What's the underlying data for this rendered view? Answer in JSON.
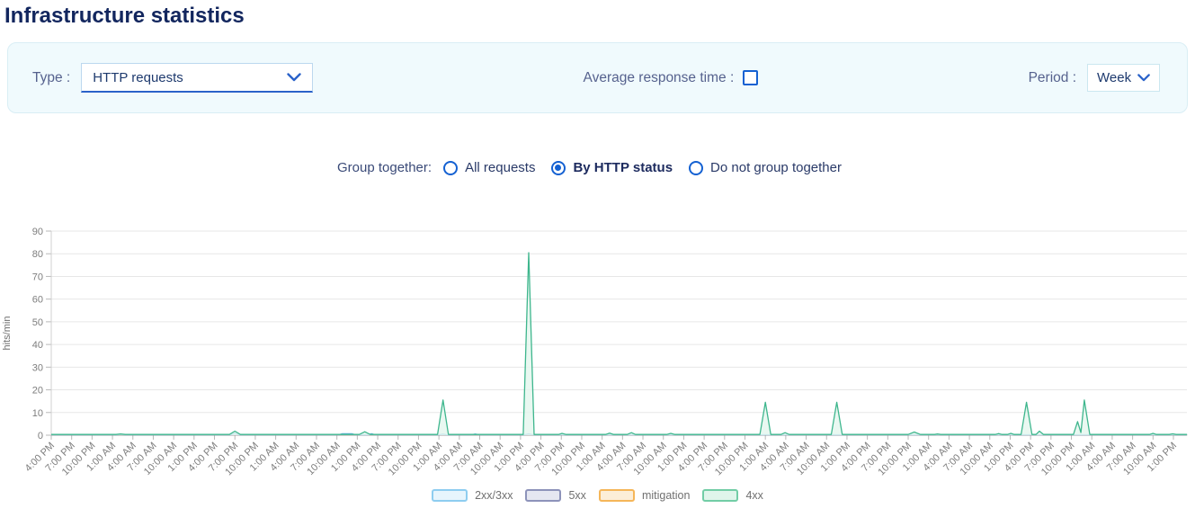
{
  "page": {
    "title": "Infrastructure statistics"
  },
  "filters": {
    "type_label": "Type :",
    "type_value": "HTTP requests",
    "avg_response_label": "Average response time :",
    "avg_response_checked": false,
    "period_label": "Period :",
    "period_value": "Week"
  },
  "grouping": {
    "label": "Group together:",
    "options": [
      {
        "label": "All requests",
        "selected": false
      },
      {
        "label": "By HTTP status",
        "selected": true
      },
      {
        "label": "Do not group together",
        "selected": false
      }
    ]
  },
  "colors": {
    "accent_blue": "#1461d2",
    "panel_bg": "#f0fafd",
    "title_navy": "#12265e",
    "grid": "#e7e7e7",
    "axis": "#b0b0b0",
    "tick_text": "#7d7d7d"
  },
  "chart_data": {
    "type": "area",
    "title": "",
    "xlabel": "",
    "ylabel": "hits/min",
    "ylim": [
      0,
      90
    ],
    "y_ticks": [
      0,
      10,
      20,
      30,
      40,
      50,
      60,
      70,
      80,
      90
    ],
    "grid": true,
    "legend_position": "bottom",
    "x_unit_hours": 3,
    "x_hours_max": 167,
    "x_tick_labels": [
      "4:00 PM",
      "7:00 PM",
      "10:00 PM",
      "1:00 AM",
      "4:00 AM",
      "7:00 AM",
      "10:00 AM",
      "1:00 PM",
      "4:00 PM",
      "7:00 PM",
      "10:00 PM",
      "1:00 AM",
      "4:00 AM",
      "7:00 AM",
      "10:00 AM",
      "1:00 PM",
      "4:00 PM",
      "7:00 PM",
      "10:00 PM",
      "1:00 AM",
      "4:00 AM",
      "7:00 AM",
      "10:00 AM",
      "1:00 PM",
      "4:00 PM",
      "7:00 PM",
      "10:00 PM",
      "1:00 AM",
      "4:00 AM",
      "7:00 AM",
      "10:00 AM",
      "1:00 PM",
      "4:00 PM",
      "7:00 PM",
      "10:00 PM",
      "1:00 AM",
      "4:00 AM",
      "7:00 AM",
      "10:00 AM",
      "1:00 PM",
      "4:00 PM",
      "7:00 PM",
      "10:00 PM",
      "1:00 AM",
      "4:00 AM",
      "7:00 AM",
      "10:00 AM",
      "1:00 PM",
      "4:00 PM",
      "7:00 PM",
      "10:00 PM",
      "1:00 AM",
      "4:00 AM",
      "7:00 AM",
      "10:00 AM",
      "1:00 PM"
    ],
    "series": [
      {
        "name": "2xx/3xx",
        "stroke": "#61afe3",
        "fill": "#e9f5fd",
        "legend_border": "#8ecdf0",
        "legend_fill": "#e7f5fd",
        "points": [
          [
            0,
            0.2
          ],
          [
            9.8,
            0.2
          ],
          [
            10.2,
            0.45
          ],
          [
            10.7,
            0.2
          ],
          [
            26.5,
            0.2
          ],
          [
            27,
            0.9
          ],
          [
            27.5,
            0.2
          ],
          [
            42.3,
            0.2
          ],
          [
            42.8,
            0.65
          ],
          [
            44.2,
            0.65
          ],
          [
            44.7,
            0.2
          ],
          [
            46.6,
            0.2
          ],
          [
            47.1,
            0.65
          ],
          [
            47.6,
            0.2
          ],
          [
            57.1,
            0.2
          ],
          [
            57.6,
            0.5
          ],
          [
            58.1,
            0.2
          ],
          [
            61.8,
            0.2
          ],
          [
            62.3,
            0.5
          ],
          [
            62.9,
            0.2
          ],
          [
            69.6,
            0.2
          ],
          [
            70.2,
            0.6
          ],
          [
            70.8,
            0.2
          ],
          [
            167,
            0.2
          ]
        ]
      },
      {
        "name": "5xx",
        "stroke": "#8d93ba",
        "fill": "#e5e7f1",
        "legend_border": "#8d93ba",
        "legend_fill": "#e5e7f1",
        "points": [
          [
            0,
            0.12
          ],
          [
            167,
            0.12
          ]
        ]
      },
      {
        "name": "mitigation",
        "stroke": "#f2a93b",
        "fill": "#fceed8",
        "legend_border": "#f5b659",
        "legend_fill": "#fceed8",
        "points": [
          [
            0,
            0.08
          ],
          [
            167,
            0.08
          ]
        ]
      },
      {
        "name": "4xx",
        "stroke": "#3eb68d",
        "fill": "#e3f6ed",
        "legend_border": "#72cda6",
        "legend_fill": "#e0f5eb",
        "points": [
          [
            0,
            0.3
          ],
          [
            9.5,
            0.3
          ],
          [
            10.2,
            0.5
          ],
          [
            10.9,
            0.3
          ],
          [
            26.2,
            0.3
          ],
          [
            27,
            1.8
          ],
          [
            27.8,
            0.3
          ],
          [
            45.3,
            0.3
          ],
          [
            46.1,
            1.5
          ],
          [
            46.9,
            0.3
          ],
          [
            56.8,
            0.3
          ],
          [
            57.6,
            15.5
          ],
          [
            58.4,
            0.3
          ],
          [
            69.4,
            0.3
          ],
          [
            70.2,
            80.5
          ],
          [
            71,
            0.3
          ],
          [
            74.6,
            0.3
          ],
          [
            75.1,
            0.8
          ],
          [
            75.7,
            0.3
          ],
          [
            81.5,
            0.3
          ],
          [
            82.1,
            0.9
          ],
          [
            82.7,
            0.3
          ],
          [
            84.7,
            0.3
          ],
          [
            85.3,
            1.1
          ],
          [
            85.9,
            0.3
          ],
          [
            90.5,
            0.3
          ],
          [
            91.1,
            0.8
          ],
          [
            91.7,
            0.3
          ],
          [
            104.2,
            0.3
          ],
          [
            105,
            14.5
          ],
          [
            105.8,
            0.3
          ],
          [
            107.3,
            0.3
          ],
          [
            107.9,
            1.1
          ],
          [
            108.5,
            0.3
          ],
          [
            114.7,
            0.3
          ],
          [
            115.5,
            14.5
          ],
          [
            116.3,
            0.3
          ],
          [
            126,
            0.3
          ],
          [
            126.9,
            1.4
          ],
          [
            127.8,
            0.3
          ],
          [
            129.9,
            0.3
          ],
          [
            130.3,
            0.5
          ],
          [
            130.8,
            0.3
          ],
          [
            138.8,
            0.3
          ],
          [
            139.3,
            0.7
          ],
          [
            139.8,
            0.3
          ],
          [
            140.6,
            0.3
          ],
          [
            141.1,
            0.8
          ],
          [
            141.6,
            0.3
          ],
          [
            142.6,
            0.3
          ],
          [
            143.4,
            14.5
          ],
          [
            144.2,
            0.3
          ],
          [
            144.8,
            0.3
          ],
          [
            145.3,
            1.8
          ],
          [
            145.9,
            0.3
          ],
          [
            150.3,
            0.3
          ],
          [
            150.9,
            6
          ],
          [
            151.4,
            1.2
          ],
          [
            151.9,
            15.5
          ],
          [
            152.7,
            0.3
          ],
          [
            161.5,
            0.3
          ],
          [
            162,
            0.8
          ],
          [
            162.5,
            0.3
          ],
          [
            164.4,
            0.3
          ],
          [
            164.9,
            0.6
          ],
          [
            165.4,
            0.3
          ],
          [
            167,
            0.3
          ]
        ]
      }
    ],
    "draw_order": [
      2,
      1,
      0,
      3
    ]
  }
}
